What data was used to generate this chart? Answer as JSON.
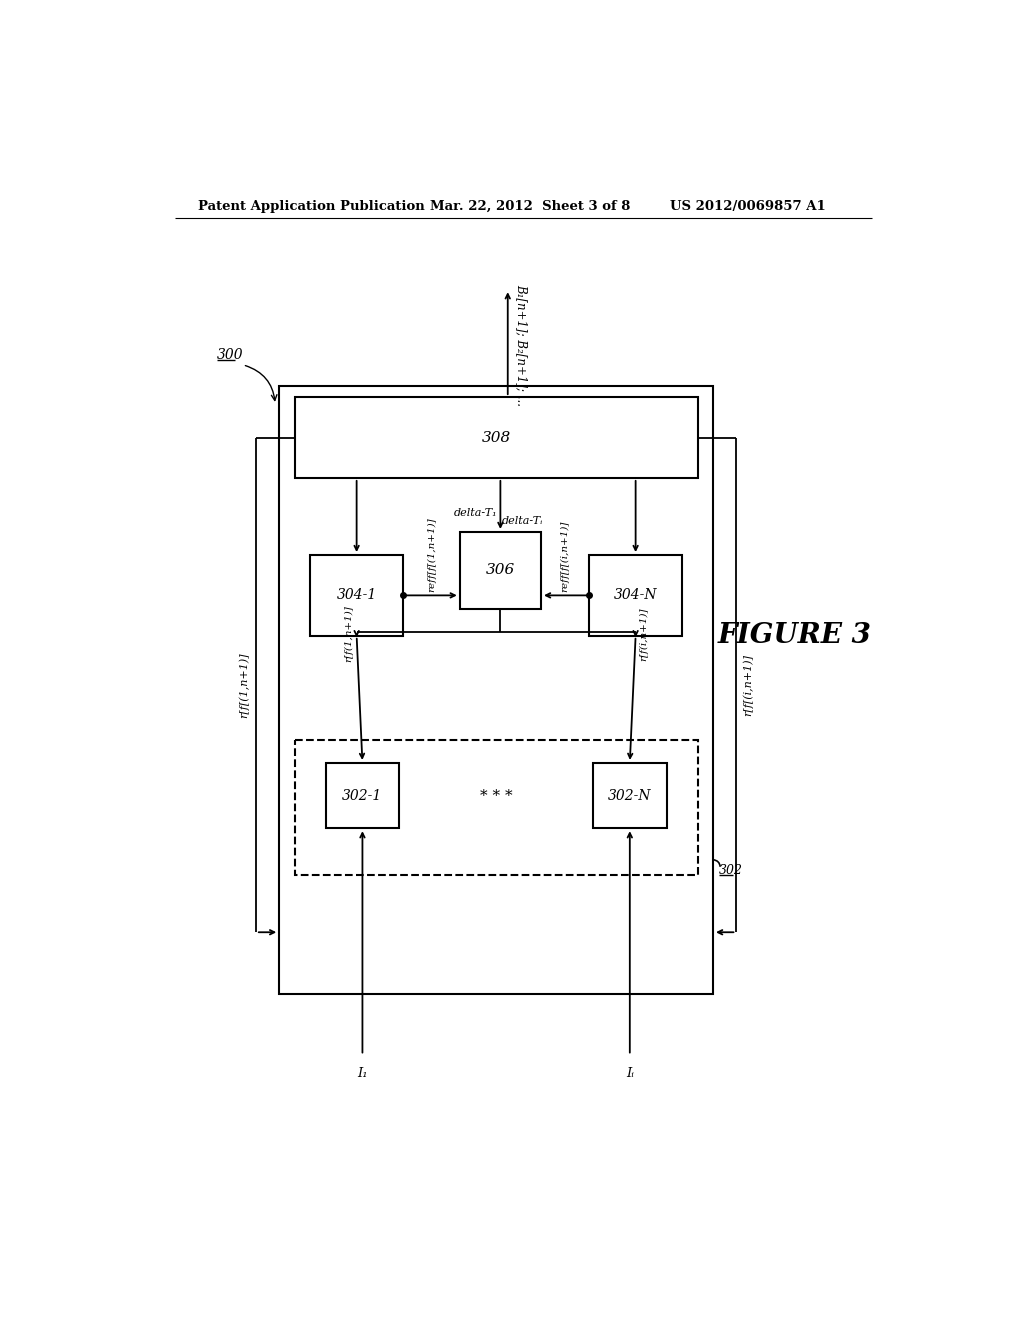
{
  "bg_color": "#ffffff",
  "header_left": "Patent Application Publication",
  "header_mid": "Mar. 22, 2012  Sheet 3 of 8",
  "header_right": "US 2012/0069857 A1",
  "figure_label": "FIGURE 3",
  "ref_300": "300",
  "output_label": "B₁[n+1]; B₂[n+1]; ...",
  "box308_label": "308",
  "box306_label": "306",
  "box3041_label": "304-1",
  "box304N_label": "304-N",
  "box3021_label": "302-1",
  "box302N_label": "302-N",
  "box302_group_label": "302",
  "delta_t1": "delta-T₁",
  "delta_ti": "delta-Tᵢ",
  "label_rff1": "r[f[(1,n+1)]",
  "label_rffi": "r[f[(i,n+1)]",
  "label_reff1": "reff[f[(1,n+1)]",
  "label_reffi": "reff[f[(i,n+1)]",
  "label_rf1n1": "r[f(1,n+1)]",
  "label_rfin1": "r[f(i,n+1)]",
  "label_I1": "I₁",
  "label_Ii": "Iᵢ"
}
